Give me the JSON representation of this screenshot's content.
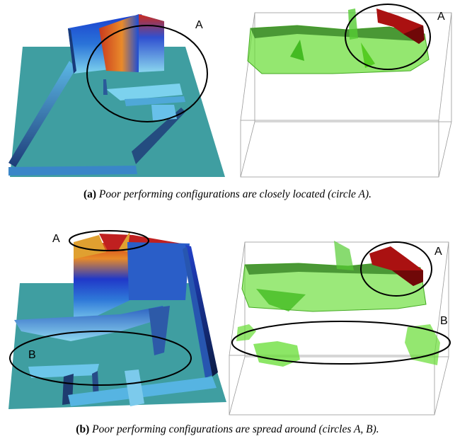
{
  "figure": {
    "panel_a": {
      "caption_tag": "(a)",
      "caption_text": "Poor performing configurations are closely located (circle A).",
      "left_circle_label": "A",
      "right_circle_label": "A"
    },
    "panel_b": {
      "caption_tag": "(b)",
      "caption_text": "Poor performing configurations are spread around (circles A, B).",
      "left_circle_a_label": "A",
      "left_circle_b_label": "B",
      "right_circle_a_label": "A",
      "right_circle_b_label": "B"
    }
  },
  "colors": {
    "surface": "#3f9ea1",
    "wall_blue": "#2266cc",
    "wall_red": "#cc2222",
    "iso_green": "#66dd33",
    "iso_red": "#aa1111"
  }
}
